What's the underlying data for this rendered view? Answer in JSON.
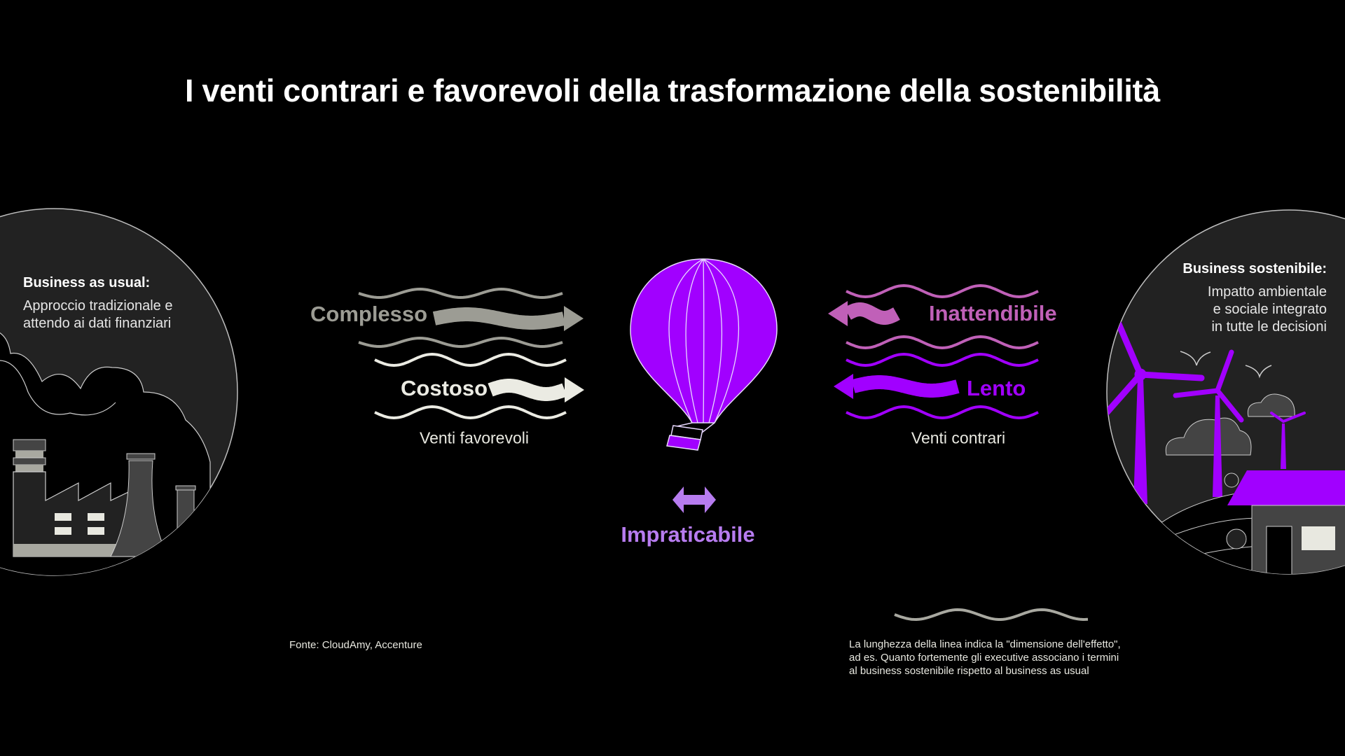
{
  "title": "I venti contrari e favorevoli della trasformazione della sostenibilità",
  "left_panel": {
    "heading": "Business as usual:",
    "lines": [
      "Approccio tradizionale e",
      "attendo ai dati finanziari"
    ]
  },
  "right_panel": {
    "heading": "Business sostenibile:",
    "lines": [
      "Impatto ambientale",
      "e sociale integrato",
      "in tutte le decisioni"
    ]
  },
  "tailwinds": {
    "caption": "Venti favorevoli",
    "items": [
      {
        "label": "Complesso",
        "color": "#9c9c94"
      },
      {
        "label": "Costoso",
        "color": "#ebebe3"
      }
    ]
  },
  "headwinds": {
    "caption": "Venti contrari",
    "items": [
      {
        "label": "Inattendibile",
        "color": "#c060b8"
      },
      {
        "label": "Lento",
        "color": "#a100ff"
      }
    ]
  },
  "neutral": {
    "label": "Impraticabile",
    "color": "#b77cf0"
  },
  "source": "Fonte: CloudAmy, Accenture",
  "legend": {
    "lines": [
      "La lunghezza della linea indica la \"dimensione dell'effetto\",",
      "ad es. Quanto fortemente gli executive associano i termini",
      "al business sostenibile rispetto al business as usual"
    ]
  },
  "colors": {
    "accent": "#a100ff",
    "panel": "#222222",
    "panel_stroke": "#bdbdbd"
  }
}
